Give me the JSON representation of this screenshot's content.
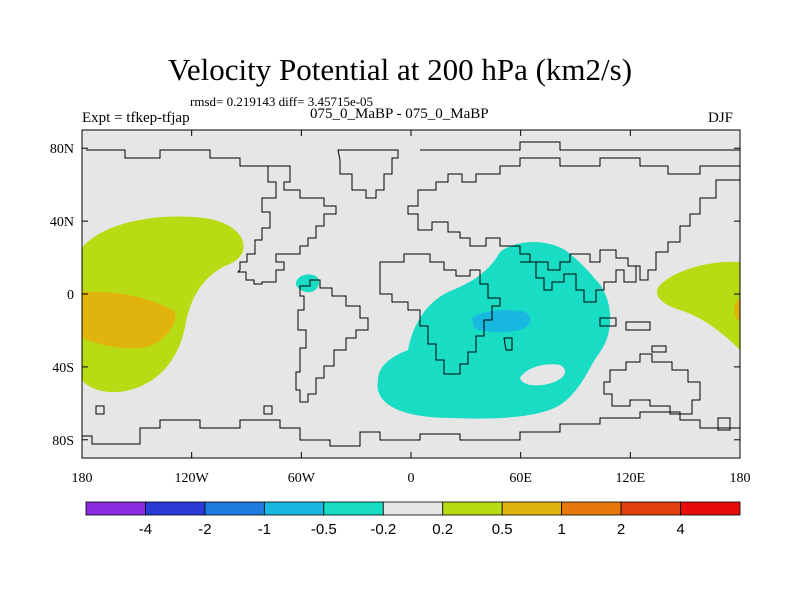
{
  "title": "Velocity Potential at 200 hPa (km2/s)",
  "stats": "rmsd= 0.219143 diff= 3.45715e-05",
  "expt": "Expt = tfkep-tfjap",
  "subtitle": "075_0_MaBP - 075_0_MaBP",
  "season": "DJF",
  "map": {
    "x_ticks": [
      {
        "lon": -180,
        "label": "180"
      },
      {
        "lon": -120,
        "label": "120W"
      },
      {
        "lon": -60,
        "label": "60W"
      },
      {
        "lon": 0,
        "label": "0"
      },
      {
        "lon": 60,
        "label": "60E"
      },
      {
        "lon": 120,
        "label": "120E"
      },
      {
        "lon": 180,
        "label": "180"
      }
    ],
    "y_ticks": [
      {
        "lat": 80,
        "label": "80N"
      },
      {
        "lat": 40,
        "label": "40N"
      },
      {
        "lat": 0,
        "label": "0"
      },
      {
        "lat": -40,
        "label": "40S"
      },
      {
        "lat": -80,
        "label": "80S"
      }
    ],
    "lon_range": [
      -180,
      180
    ],
    "lat_range": [
      -90,
      90
    ],
    "background_color": "#e6e6e6"
  },
  "colorbar": {
    "colors": [
      "#8a2be2",
      "#2b3bd8",
      "#1f7be0",
      "#18b8e0",
      "#18dcc4",
      "#e6e6e6",
      "#b8dc14",
      "#e0b40c",
      "#e8780c",
      "#e0400c",
      "#e60c0c"
    ],
    "labels": [
      "-4",
      "-2",
      "-1",
      "-0.5",
      "-0.2",
      "0.2",
      "0.5",
      "1",
      "2",
      "4"
    ]
  }
}
